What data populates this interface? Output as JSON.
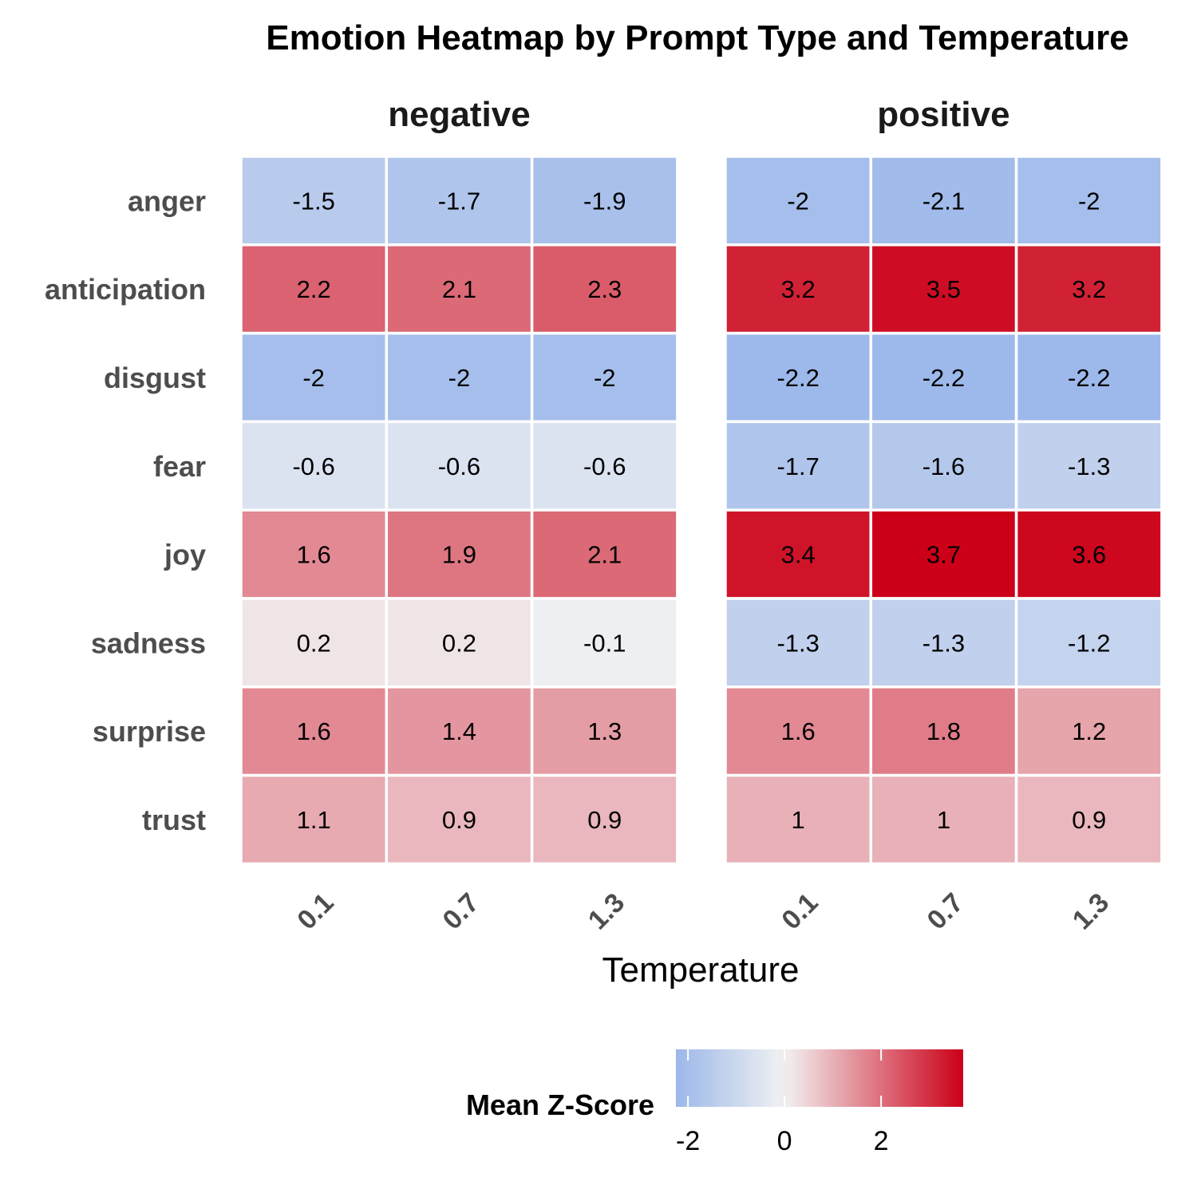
{
  "chart_data": {
    "type": "heatmap",
    "title": "Emotion Heatmap by Prompt Type and Temperature",
    "xlabel": "Temperature",
    "ylabel": "",
    "x_categories": [
      "0.1",
      "0.7",
      "1.3"
    ],
    "y_categories": [
      "anger",
      "anticipation",
      "disgust",
      "fear",
      "joy",
      "sadness",
      "surprise",
      "trust"
    ],
    "panels": [
      {
        "name": "negative",
        "values": [
          [
            -1.5,
            -1.7,
            -1.9
          ],
          [
            2.2,
            2.1,
            2.3
          ],
          [
            -2,
            -2,
            -2
          ],
          [
            -0.6,
            -0.6,
            -0.6
          ],
          [
            1.6,
            1.9,
            2.1
          ],
          [
            0.2,
            0.2,
            -0.1
          ],
          [
            1.6,
            1.4,
            1.3
          ],
          [
            1.1,
            0.9,
            0.9
          ]
        ]
      },
      {
        "name": "positive",
        "values": [
          [
            -2,
            -2.1,
            -2
          ],
          [
            3.2,
            3.5,
            3.2
          ],
          [
            -2.2,
            -2.2,
            -2.2
          ],
          [
            -1.7,
            -1.6,
            -1.3
          ],
          [
            3.4,
            3.7,
            3.6
          ],
          [
            -1.3,
            -1.3,
            -1.2
          ],
          [
            1.6,
            1.8,
            1.2
          ],
          [
            1,
            1,
            0.9
          ]
        ]
      }
    ],
    "legend": {
      "title": "Mean Z-Score",
      "position": "bottom",
      "ticks": [
        -2,
        0,
        2
      ],
      "range": [
        -2.25,
        3.7
      ],
      "colors": {
        "low": "#9bb7ea",
        "mid": "#f2f2f2",
        "high": "#cc0018"
      }
    }
  }
}
